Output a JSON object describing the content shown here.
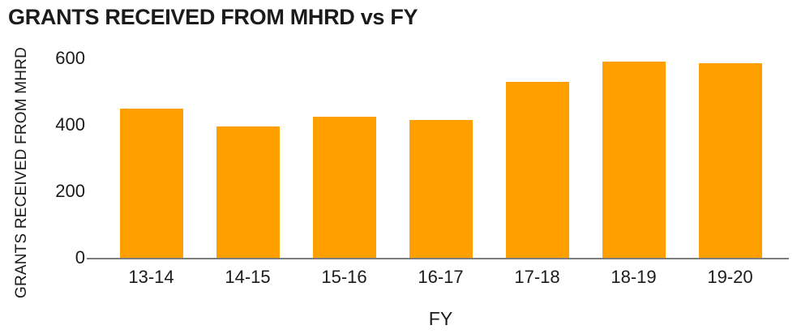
{
  "chart_data": {
    "type": "bar",
    "title": "GRANTS RECEIVED FROM MHRD vs FY",
    "xlabel": "FY",
    "ylabel": "GRANTS RECEIVED FROM MHRD",
    "categories": [
      "13-14",
      "14-15",
      "15-16",
      "16-17",
      "17-18",
      "18-19",
      "19-20"
    ],
    "values": [
      450,
      395,
      425,
      415,
      530,
      590,
      585
    ],
    "yticks": [
      0,
      200,
      400,
      600
    ],
    "ylim": [
      0,
      600
    ],
    "grid": false,
    "legend": "none",
    "bar_color": "#ff9f00",
    "axis_line_color": "#7d7d7d",
    "text_color": "#1b1b1b",
    "background_color": "#ffffff"
  }
}
